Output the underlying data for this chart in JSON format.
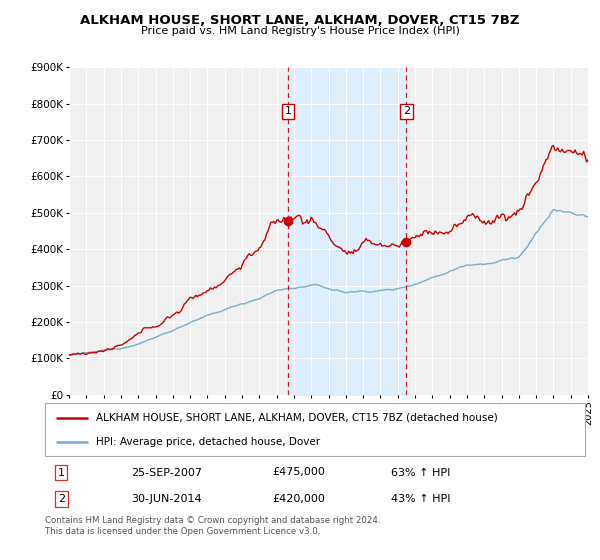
{
  "title": "ALKHAM HOUSE, SHORT LANE, ALKHAM, DOVER, CT15 7BZ",
  "subtitle": "Price paid vs. HM Land Registry's House Price Index (HPI)",
  "ylim": [
    0,
    900000
  ],
  "yticks": [
    0,
    100000,
    200000,
    300000,
    400000,
    500000,
    600000,
    700000,
    800000,
    900000
  ],
  "ytick_labels": [
    "£0",
    "£100K",
    "£200K",
    "£300K",
    "£400K",
    "£500K",
    "£600K",
    "£700K",
    "£800K",
    "£900K"
  ],
  "line1_color": "#cc0000",
  "line2_color": "#7aadcc",
  "shade_color": "#ddeeff",
  "ann1_month": 152,
  "ann2_month": 234,
  "ann1_price": 475000,
  "ann2_price": 420000,
  "legend_line1": "ALKHAM HOUSE, SHORT LANE, ALKHAM, DOVER, CT15 7BZ (detached house)",
  "legend_line2": "HPI: Average price, detached house, Dover",
  "table_row1": [
    "1",
    "25-SEP-2007",
    "£475,000",
    "63% ↑ HPI"
  ],
  "table_row2": [
    "2",
    "30-JUN-2014",
    "£420,000",
    "43% ↑ HPI"
  ],
  "footer": "Contains HM Land Registry data © Crown copyright and database right 2024.\nThis data is licensed under the Open Government Licence v3.0.",
  "background_color": "#ffffff",
  "plot_bg_color": "#f0f0f0"
}
